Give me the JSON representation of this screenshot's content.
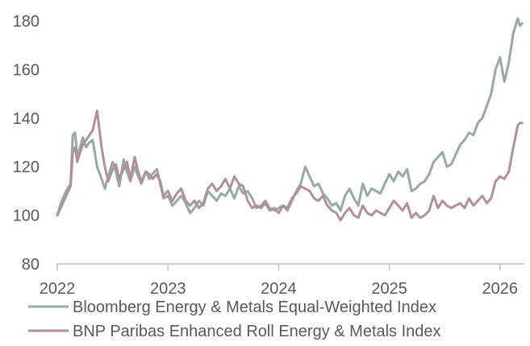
{
  "chart_data": {
    "type": "line",
    "title": "",
    "xlabel": "",
    "ylabel": "",
    "ylim": [
      80,
      180
    ],
    "y_ticks": [
      80,
      100,
      120,
      140,
      160,
      180
    ],
    "xlim": [
      2022.0,
      2026.22
    ],
    "x_ticks": [
      2022,
      2023,
      2024,
      2025,
      2026
    ],
    "x_tick_labels": [
      "2022",
      "2023",
      "2024",
      "2025",
      "2026"
    ],
    "grid": false,
    "legend_position": "bottom",
    "series": [
      {
        "name": "Bloomberg Energy & Metals Equal-Weighted Index",
        "color": "#98a8aa",
        "x": [
          2022.0,
          2022.04,
          2022.08,
          2022.12,
          2022.14,
          2022.16,
          2022.18,
          2022.2,
          2022.23,
          2022.26,
          2022.29,
          2022.32,
          2022.36,
          2022.4,
          2022.43,
          2022.46,
          2022.5,
          2022.53,
          2022.56,
          2022.6,
          2022.63,
          2022.66,
          2022.7,
          2022.73,
          2022.76,
          2022.8,
          2022.83,
          2022.86,
          2022.9,
          2022.93,
          2022.96,
          2023.0,
          2023.04,
          2023.08,
          2023.12,
          2023.16,
          2023.2,
          2023.24,
          2023.28,
          2023.32,
          2023.36,
          2023.4,
          2023.44,
          2023.48,
          2023.52,
          2023.56,
          2023.6,
          2023.64,
          2023.68,
          2023.72,
          2023.76,
          2023.8,
          2023.84,
          2023.88,
          2023.92,
          2023.96,
          2024.0,
          2024.04,
          2024.08,
          2024.12,
          2024.16,
          2024.2,
          2024.24,
          2024.28,
          2024.32,
          2024.36,
          2024.4,
          2024.44,
          2024.48,
          2024.52,
          2024.56,
          2024.6,
          2024.64,
          2024.68,
          2024.72,
          2024.76,
          2024.8,
          2024.84,
          2024.88,
          2024.92,
          2024.96,
          2025.0,
          2025.04,
          2025.08,
          2025.12,
          2025.16,
          2025.2,
          2025.24,
          2025.28,
          2025.32,
          2025.36,
          2025.4,
          2025.44,
          2025.48,
          2025.52,
          2025.56,
          2025.6,
          2025.64,
          2025.68,
          2025.72,
          2025.76,
          2025.8,
          2025.84,
          2025.88,
          2025.92,
          2025.96,
          2026.0,
          2026.04,
          2026.08,
          2026.12,
          2026.16,
          2026.18,
          2026.2
        ],
        "values": [
          100,
          106,
          110,
          113,
          133,
          134,
          125,
          127,
          132,
          128,
          130,
          131,
          120,
          115,
          111,
          116,
          122,
          118,
          112,
          123,
          118,
          114,
          120,
          116,
          113,
          118,
          115,
          117,
          119,
          113,
          107,
          108,
          104,
          106,
          108,
          105,
          101,
          103,
          106,
          104,
          110,
          108,
          106,
          109,
          108,
          111,
          107,
          112,
          109,
          110,
          107,
          103,
          104,
          106,
          103,
          102,
          103,
          104,
          102,
          106,
          110,
          113,
          120,
          116,
          112,
          113,
          109,
          107,
          104,
          105,
          102,
          108,
          111,
          107,
          104,
          113,
          108,
          111,
          110,
          109,
          113,
          117,
          114,
          118,
          116,
          119,
          110,
          111,
          113,
          114,
          117,
          122,
          124,
          126,
          120,
          121,
          125,
          129,
          131,
          134,
          133,
          138,
          140,
          145,
          150,
          160,
          165,
          155,
          163,
          175,
          181,
          178,
          179
        ]
      },
      {
        "name": "BNP Paribas Enhanced Roll Energy & Metals Index",
        "color": "#b09194",
        "x": [
          2022.0,
          2022.04,
          2022.08,
          2022.12,
          2022.14,
          2022.16,
          2022.18,
          2022.2,
          2022.23,
          2022.26,
          2022.29,
          2022.32,
          2022.36,
          2022.4,
          2022.43,
          2022.46,
          2022.5,
          2022.53,
          2022.56,
          2022.6,
          2022.63,
          2022.66,
          2022.7,
          2022.73,
          2022.76,
          2022.8,
          2022.83,
          2022.86,
          2022.9,
          2022.93,
          2022.96,
          2023.0,
          2023.04,
          2023.08,
          2023.12,
          2023.16,
          2023.2,
          2023.24,
          2023.28,
          2023.32,
          2023.36,
          2023.4,
          2023.44,
          2023.48,
          2023.52,
          2023.56,
          2023.6,
          2023.64,
          2023.68,
          2023.72,
          2023.76,
          2023.8,
          2023.84,
          2023.88,
          2023.92,
          2023.96,
          2024.0,
          2024.04,
          2024.08,
          2024.12,
          2024.16,
          2024.2,
          2024.24,
          2024.28,
          2024.32,
          2024.36,
          2024.4,
          2024.44,
          2024.48,
          2024.52,
          2024.56,
          2024.6,
          2024.64,
          2024.68,
          2024.72,
          2024.76,
          2024.8,
          2024.84,
          2024.88,
          2024.92,
          2024.96,
          2025.0,
          2025.04,
          2025.08,
          2025.12,
          2025.16,
          2025.2,
          2025.24,
          2025.28,
          2025.32,
          2025.36,
          2025.4,
          2025.44,
          2025.48,
          2025.52,
          2025.56,
          2025.6,
          2025.64,
          2025.68,
          2025.72,
          2025.76,
          2025.8,
          2025.84,
          2025.88,
          2025.92,
          2025.96,
          2026.0,
          2026.04,
          2026.08,
          2026.12,
          2026.16,
          2026.18,
          2026.2
        ],
        "values": [
          100,
          104,
          108,
          112,
          126,
          128,
          122,
          125,
          129,
          131,
          133,
          135,
          143,
          128,
          120,
          114,
          119,
          121,
          115,
          119,
          122,
          115,
          124,
          118,
          114,
          118,
          117,
          115,
          117,
          114,
          108,
          110,
          106,
          109,
          111,
          106,
          104,
          106,
          103,
          105,
          111,
          113,
          110,
          112,
          115,
          111,
          116,
          113,
          112,
          106,
          103,
          104,
          103,
          105,
          102,
          103,
          101,
          104,
          103,
          107,
          109,
          112,
          111,
          110,
          107,
          106,
          108,
          104,
          102,
          101,
          98,
          101,
          103,
          100,
          99,
          104,
          101,
          100,
          102,
          101,
          100,
          103,
          106,
          104,
          102,
          105,
          99,
          101,
          99,
          100,
          102,
          108,
          103,
          106,
          104,
          103,
          104,
          105,
          103,
          107,
          104,
          106,
          108,
          105,
          107,
          114,
          116,
          115,
          118,
          128,
          137,
          138,
          138
        ]
      }
    ]
  }
}
